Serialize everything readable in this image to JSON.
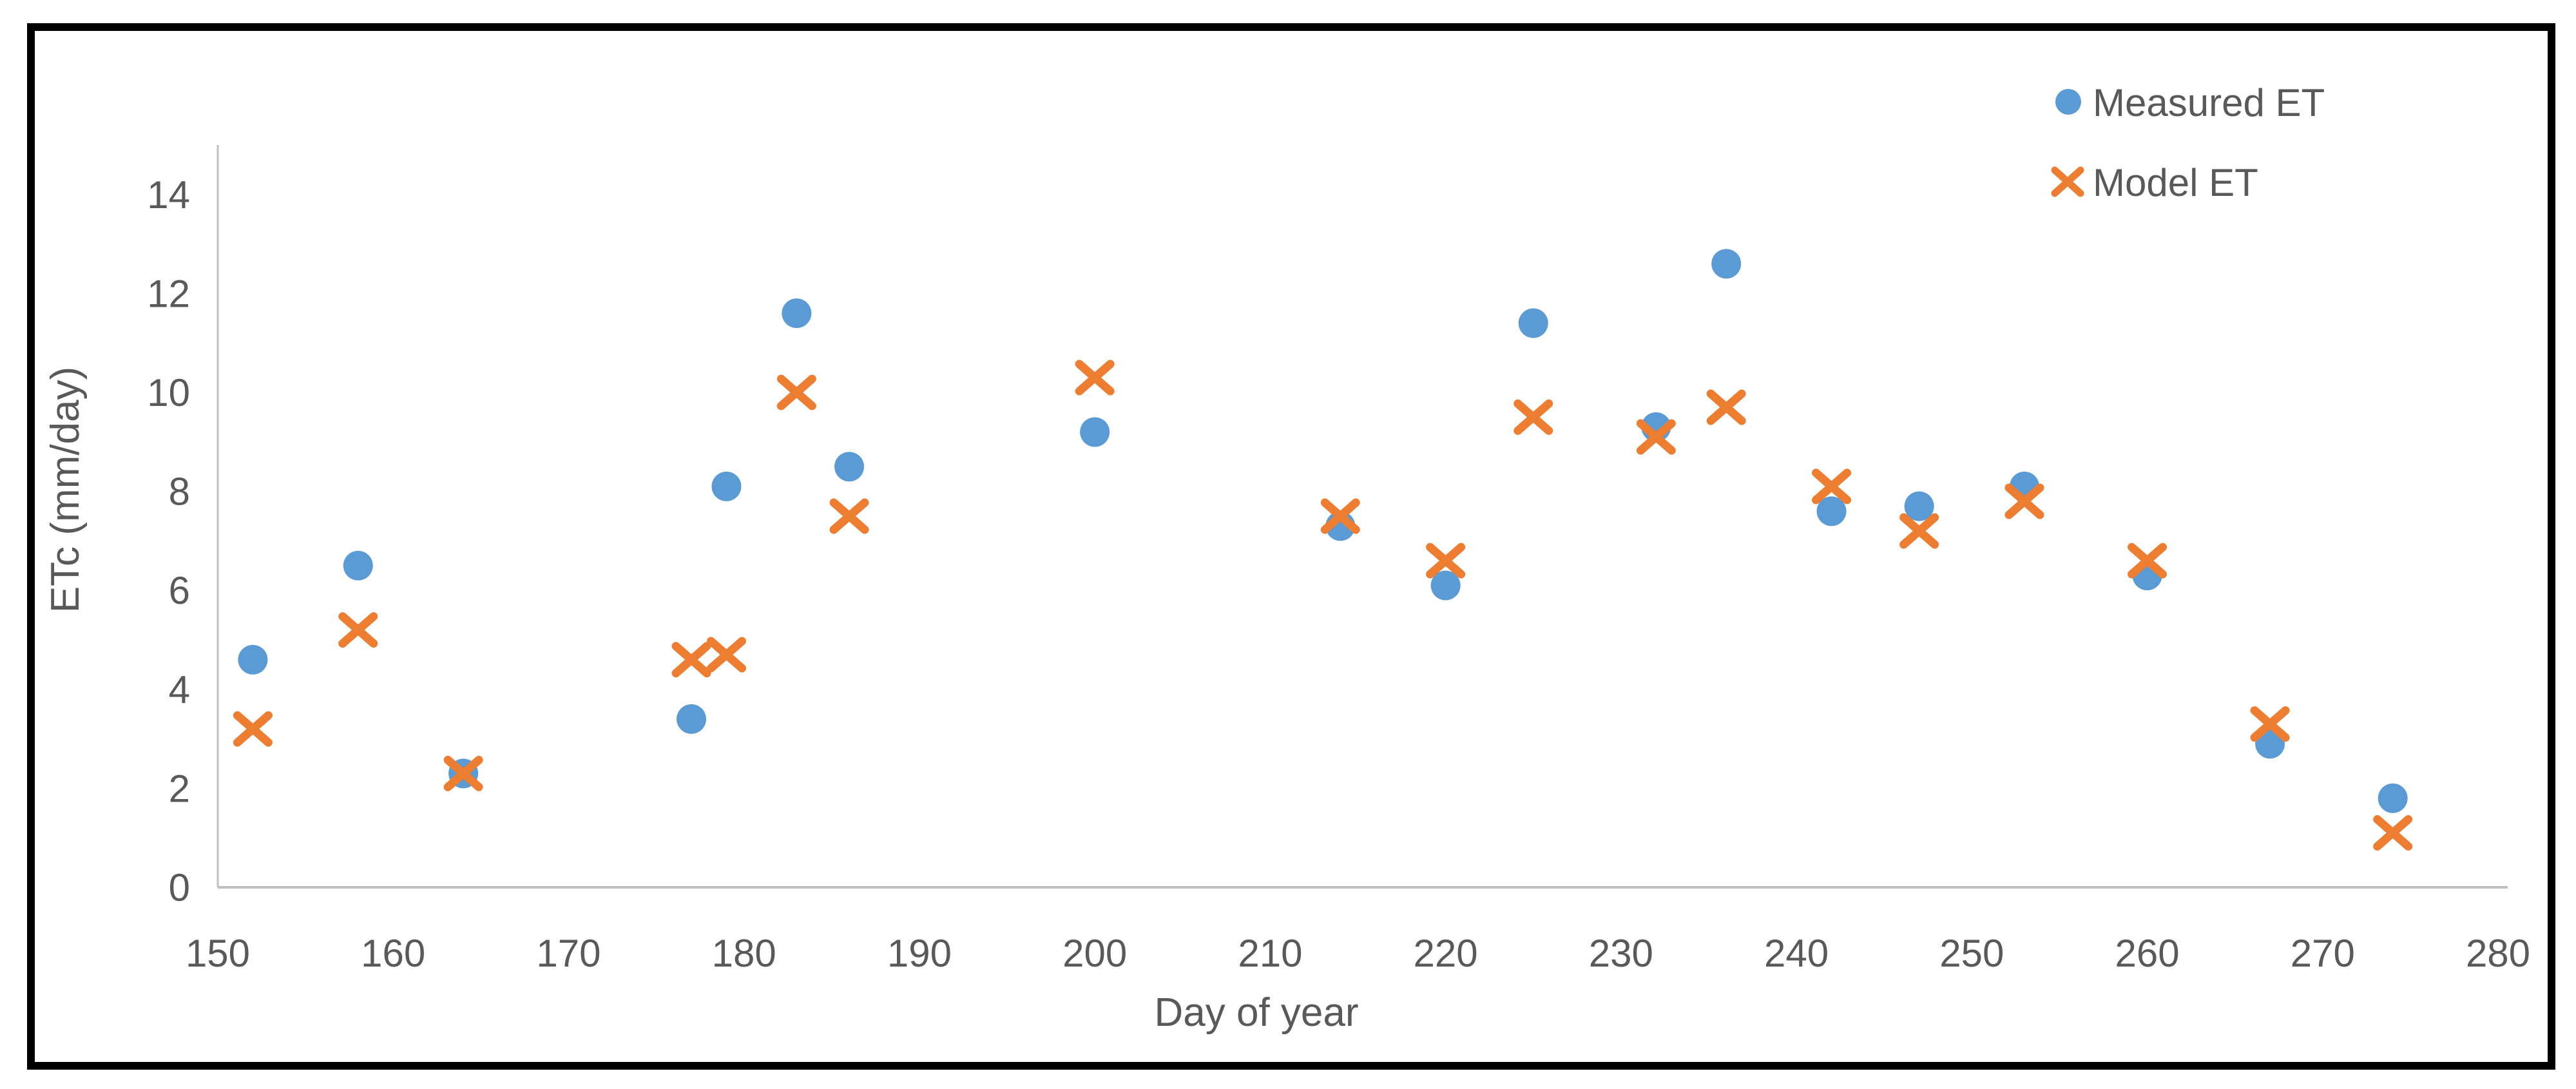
{
  "chart_data": {
    "type": "scatter",
    "title": "",
    "xlabel": "Day of year",
    "ylabel": "ETc (mm/day)",
    "xlim": [
      150,
      280
    ],
    "ylim": [
      0,
      15
    ],
    "x_ticks": [
      150,
      160,
      170,
      180,
      190,
      200,
      210,
      220,
      230,
      240,
      250,
      260,
      270,
      280
    ],
    "y_ticks": [
      0,
      2,
      4,
      6,
      8,
      10,
      12,
      14
    ],
    "grid": false,
    "legend_position": "top-right",
    "colors": {
      "measured": "#5B9BD5",
      "model": "#ED7D31"
    },
    "axis_line_color": "#BFBFBF",
    "tick_label_color": "#595959",
    "x": [
      152,
      158,
      164,
      177,
      179,
      183,
      186,
      200,
      214,
      220,
      225,
      232,
      236,
      242,
      247,
      253,
      260,
      267,
      274
    ],
    "series": [
      {
        "name": "Measured ET",
        "marker": "circle",
        "values": [
          4.6,
          6.5,
          2.3,
          3.4,
          8.1,
          11.6,
          8.5,
          9.2,
          7.3,
          6.1,
          11.4,
          9.3,
          12.6,
          7.6,
          7.7,
          8.1,
          6.3,
          2.9,
          1.8
        ]
      },
      {
        "name": "Model ET",
        "marker": "x",
        "values": [
          3.2,
          5.2,
          2.3,
          4.6,
          4.7,
          10.0,
          7.5,
          10.3,
          7.5,
          6.6,
          9.5,
          9.1,
          9.7,
          8.1,
          7.2,
          7.8,
          6.6,
          3.3,
          1.1
        ]
      }
    ]
  }
}
